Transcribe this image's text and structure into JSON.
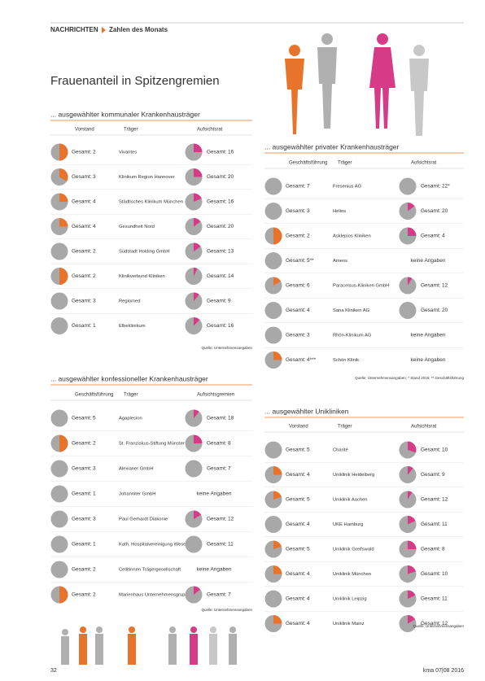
{
  "header": {
    "section": "NACHRICHTEN",
    "subsection": "Zahlen des Monats"
  },
  "title": "Frauenanteil in Spitzengremien",
  "total_label": "Gesamt:",
  "tables": [
    {
      "title": "... ausgewählter kommunaler Krankenhausträger",
      "columns": [
        "Vorstand",
        "Träger",
        "Aufsichtsrat"
      ],
      "rows": [
        {
          "left": {
            "total": 2,
            "women": 1
          },
          "carrier": "Vivantes",
          "right": {
            "total": 16,
            "women": 4
          }
        },
        {
          "left": {
            "total": 3,
            "women": 1
          },
          "carrier": "Klinikum Region Hannover",
          "right": {
            "total": 20,
            "women": 5
          }
        },
        {
          "left": {
            "total": 4,
            "women": 1
          },
          "carrier": "Städtisches Klinikum München",
          "right": {
            "total": 16,
            "women": 3
          }
        },
        {
          "left": {
            "total": 4,
            "women": 1
          },
          "carrier": "Gesundheit Nord",
          "right": {
            "total": 20,
            "women": 3
          }
        },
        {
          "left": {
            "total": 2,
            "women": 0
          },
          "carrier": "Südstadt Holding GmbH",
          "right": {
            "total": 13,
            "women": 2
          }
        },
        {
          "left": {
            "total": 2,
            "women": 1
          },
          "carrier": "Klinikverbund Kliniken",
          "right": {
            "total": 14,
            "women": 1
          }
        },
        {
          "left": {
            "total": 3,
            "women": 0
          },
          "carrier": "Regiomed",
          "right": {
            "total": 9,
            "women": 1
          }
        },
        {
          "left": {
            "total": 1,
            "women": 0
          },
          "carrier": "Elbeklinikum",
          "right": {
            "total": 16,
            "women": 2
          }
        }
      ],
      "source": "Quelle: Unternehmensangaben"
    },
    {
      "title": "... ausgewählter privater Krankenhausträger",
      "columns": [
        "Geschäftsführung",
        "Träger",
        "Aufsichtsrat"
      ],
      "rows": [
        {
          "left": {
            "total": 7,
            "women": 0
          },
          "carrier": "Fresenius AG",
          "right": {
            "total": 22,
            "total_label": "22*",
            "women": 0
          }
        },
        {
          "left": {
            "total": 3,
            "women": 0
          },
          "carrier": "Helios",
          "right": {
            "total": 20,
            "women": 3
          }
        },
        {
          "left": {
            "total": 2,
            "women": 1
          },
          "carrier": "Asklepios Kliniken",
          "right": {
            "total": 4,
            "women": 1
          }
        },
        {
          "left": {
            "total": 5,
            "total_label": "5**",
            "women": 0
          },
          "carrier": "Ameos",
          "right": {
            "note": "keine Angaben"
          }
        },
        {
          "left": {
            "total": 6,
            "women": 1
          },
          "carrier": "Paracelsus-Kliniken GmbH",
          "right": {
            "total": 12,
            "women": 1
          }
        },
        {
          "left": {
            "total": 4,
            "women": 0
          },
          "carrier": "Sana Kliniken AG",
          "right": {
            "total": 20,
            "women": 0
          }
        },
        {
          "left": {
            "total": 3,
            "women": 0
          },
          "carrier": "Rhön-Klinikum AG",
          "right": {
            "note": "keine Angaben"
          }
        },
        {
          "left": {
            "total": 4,
            "total_label": "4***",
            "women": 1
          },
          "carrier": "Schön Klinik",
          "right": {
            "note": "keine Angaben"
          }
        }
      ],
      "source": "Quelle: Unternehmensangaben; * Stand 2016; ** Geschäftsführung"
    },
    {
      "title": "... ausgewählter konfessioneller Krankenhausträger",
      "columns": [
        "Geschäftsführung",
        "Träger",
        "Aufsichtsgremien"
      ],
      "rows": [
        {
          "left": {
            "total": 5,
            "women": 0
          },
          "carrier": "Agaplesion",
          "right": {
            "total": 18,
            "women": 2
          }
        },
        {
          "left": {
            "total": 2,
            "women": 1
          },
          "carrier": "St. Franziskus-Stiftung Münster",
          "right": {
            "total": 8,
            "women": 2
          }
        },
        {
          "left": {
            "total": 3,
            "women": 0
          },
          "carrier": "Alexianer GmbH",
          "right": {
            "total": 7,
            "women": 0
          }
        },
        {
          "left": {
            "total": 1,
            "women": 0
          },
          "carrier": "Johanniter GmbH",
          "right": {
            "note": "keine Angaben"
          }
        },
        {
          "left": {
            "total": 3,
            "women": 0
          },
          "carrier": "Paul Gerhardt Diakonie",
          "right": {
            "total": 12,
            "women": 2
          }
        },
        {
          "left": {
            "total": 1,
            "women": 0
          },
          "carrier": "Kath. Hospitalvereinigung Weser-Egge",
          "right": {
            "total": 11,
            "women": 0
          }
        },
        {
          "left": {
            "total": 2,
            "women": 0
          },
          "carrier": "Cellitinnen Trägergesellschaft",
          "right": {
            "note": "keine Angaben"
          }
        },
        {
          "left": {
            "total": 2,
            "women": 1
          },
          "carrier": "Marienhaus Unternehmensgruppe",
          "right": {
            "total": 7,
            "women": 1
          }
        }
      ],
      "source": "Quelle: Unternehmensangaben"
    },
    {
      "title": "... ausgewählter Unikliniken",
      "columns": [
        "Vorstand",
        "Träger",
        "Aufsichtsrat"
      ],
      "rows": [
        {
          "left": {
            "total": 5,
            "women": 0
          },
          "carrier": "Charité",
          "right": {
            "total": 10,
            "women": 3
          }
        },
        {
          "left": {
            "total": 4,
            "women": 1
          },
          "carrier": "Uniklinik Heidelberg",
          "right": {
            "total": 9,
            "women": 1
          }
        },
        {
          "left": {
            "total": 5,
            "women": 1
          },
          "carrier": "Uniklinik Aachen",
          "right": {
            "total": 12,
            "women": 1
          }
        },
        {
          "left": {
            "total": 4,
            "women": 0
          },
          "carrier": "UKE Hamburg",
          "right": {
            "total": 11,
            "women": 2
          }
        },
        {
          "left": {
            "total": 5,
            "women": 1
          },
          "carrier": "Uniklinik Greifswald",
          "right": {
            "total": 8,
            "women": 2
          }
        },
        {
          "left": {
            "total": 4,
            "women": 1
          },
          "carrier": "Uniklinik München",
          "right": {
            "total": 10,
            "women": 2
          }
        },
        {
          "left": {
            "total": 4,
            "women": 0
          },
          "carrier": "Uniklinik Leipzig",
          "right": {
            "total": 11,
            "women": 2
          }
        },
        {
          "left": {
            "total": 4,
            "women": 1
          },
          "carrier": "Uniklinik Mainz",
          "right": {
            "total": 12,
            "women": 2
          }
        }
      ],
      "source": "Quelle: Unternehmensangaben"
    }
  ],
  "footer": {
    "page": "32",
    "issue": "kma 07|08 2016"
  }
}
